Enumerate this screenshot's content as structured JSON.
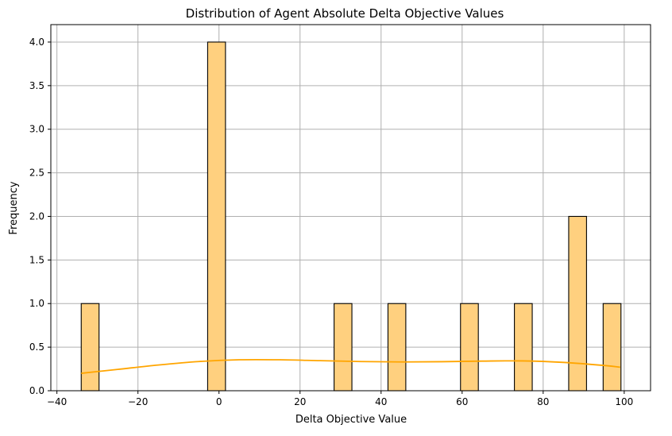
{
  "chart_data": {
    "type": "bar",
    "title": "Distribution of Agent Absolute Delta Objective Values",
    "xlabel": "Delta Objective Value",
    "ylabel": "Frequency",
    "xlim": [
      -41.5,
      106.5
    ],
    "ylim": [
      0,
      4.2
    ],
    "xticks": [
      -40,
      -20,
      0,
      20,
      40,
      60,
      80,
      100
    ],
    "xtick_labels": [
      "−40",
      "−20",
      "0",
      "20",
      "40",
      "60",
      "80",
      "100"
    ],
    "yticks": [
      0.0,
      0.5,
      1.0,
      1.5,
      2.0,
      2.5,
      3.0,
      3.5,
      4.0
    ],
    "ytick_labels": [
      "0.0",
      "0.5",
      "1.0",
      "1.5",
      "2.0",
      "2.5",
      "3.0",
      "3.5",
      "4.0"
    ],
    "grid": true,
    "bars": [
      {
        "x0": -34.0,
        "x1": -29.6,
        "count": 1
      },
      {
        "x0": -2.8,
        "x1": 1.6,
        "count": 4
      },
      {
        "x0": 28.4,
        "x1": 32.8,
        "count": 1
      },
      {
        "x0": 41.7,
        "x1": 46.1,
        "count": 1
      },
      {
        "x0": 59.6,
        "x1": 64.0,
        "count": 1
      },
      {
        "x0": 72.9,
        "x1": 77.3,
        "count": 1
      },
      {
        "x0": 86.3,
        "x1": 90.7,
        "count": 2
      },
      {
        "x0": 94.8,
        "x1": 99.2,
        "count": 1
      }
    ],
    "kde": {
      "x": [
        -34,
        -25,
        -15,
        -5,
        5,
        15,
        25,
        35,
        45,
        55,
        65,
        75,
        85,
        95,
        99
      ],
      "y": [
        0.2,
        0.245,
        0.295,
        0.335,
        0.355,
        0.355,
        0.345,
        0.335,
        0.33,
        0.333,
        0.34,
        0.342,
        0.325,
        0.29,
        0.27
      ]
    },
    "colors": {
      "bar_fill": "#ffd07f",
      "bar_edge": "#000000",
      "kde_line": "#ffa500",
      "grid": "#b0b0b0"
    }
  }
}
